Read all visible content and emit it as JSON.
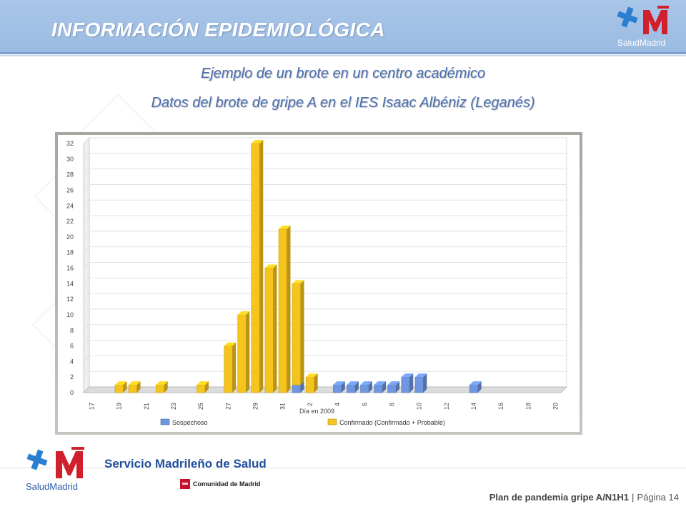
{
  "header": {
    "title": "INFORMACIÓN EPIDEMIOLÓGICA",
    "brand": "SaludMadrid",
    "accent": "#9bbbe2"
  },
  "subtitles": {
    "line1": "Ejemplo de un brote en un centro académico",
    "line2": "Datos del brote de gripe A en el IES Isaac Albéniz  (Leganés)"
  },
  "chart_data": {
    "type": "bar",
    "stacked": true,
    "xlabel": "Día en 2009",
    "ylabel": "",
    "ylim": [
      0,
      32
    ],
    "yticks": [
      "0",
      "2",
      "4",
      "6",
      "8",
      "10",
      "12",
      "14",
      "16",
      "18",
      "20",
      "22",
      "24",
      "26",
      "28",
      "30",
      "32"
    ],
    "categories": [
      "17",
      "18",
      "19",
      "20",
      "21",
      "22",
      "23",
      "24",
      "25",
      "26",
      "27",
      "28",
      "29",
      "30",
      "31",
      "1",
      "2",
      "3",
      "4",
      "5",
      "6",
      "7",
      "8",
      "9",
      "10",
      "11",
      "12",
      "13",
      "14",
      "15",
      "16",
      "17",
      "18",
      "19",
      "20"
    ],
    "tick_labels": [
      "17",
      "19",
      "21",
      "23",
      "25",
      "27",
      "29",
      "31",
      "2",
      "4",
      "6",
      "8",
      "10",
      "12",
      "14",
      "16",
      "18",
      "20"
    ],
    "grid": true,
    "legend_position": "bottom",
    "series": [
      {
        "name": "Sospechoso",
        "color": "#6e97e0",
        "values": [
          0,
          0,
          0,
          0,
          0,
          0,
          0,
          0,
          0,
          0,
          0,
          0,
          0,
          0,
          0,
          1,
          0,
          0,
          1,
          1,
          1,
          1,
          1,
          2,
          2,
          0,
          0,
          0,
          1,
          0,
          0,
          0,
          0,
          0,
          0
        ]
      },
      {
        "name": "Confirmado (Confirmado + Probable)",
        "color": "#f6c51d",
        "values": [
          0,
          0,
          1,
          1,
          0,
          1,
          0,
          0,
          1,
          0,
          6,
          10,
          32,
          16,
          21,
          13,
          2,
          0,
          0,
          0,
          0,
          0,
          0,
          0,
          0,
          0,
          0,
          0,
          0,
          0,
          0,
          0,
          0,
          0,
          0
        ]
      }
    ]
  },
  "footer": {
    "logo_brand": "SaludMadrid",
    "service": "Servicio Madrileño de Salud",
    "community": "Comunidad de Madrid",
    "plan": "Plan de pandemia gripe A/N1H1",
    "separator": "|",
    "page": "Página 14"
  }
}
